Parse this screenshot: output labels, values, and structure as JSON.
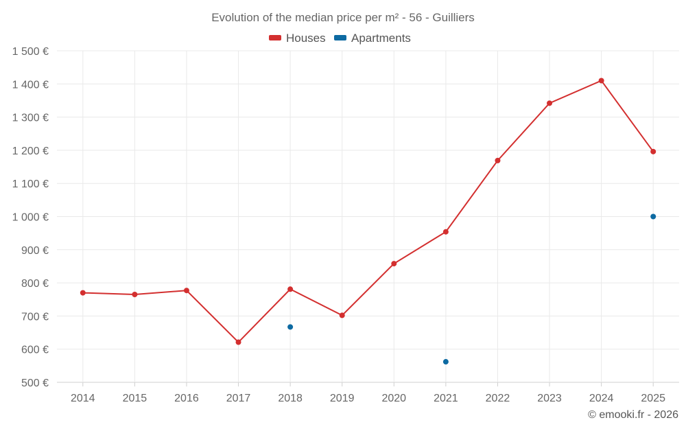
{
  "chart_data": {
    "type": "line",
    "title": "Evolution of the median price per m² - 56 - Guilliers",
    "categories": [
      "2014",
      "2015",
      "2016",
      "2017",
      "2018",
      "2019",
      "2020",
      "2021",
      "2022",
      "2023",
      "2024",
      "2025"
    ],
    "ylim": [
      500,
      1500
    ],
    "yticks": [
      500,
      600,
      700,
      800,
      900,
      1000,
      1100,
      1200,
      1300,
      1400,
      1500
    ],
    "ytick_labels": [
      "500 €",
      "600 €",
      "700 €",
      "800 €",
      "900 €",
      "1 000 €",
      "1 100 €",
      "1 200 €",
      "1 300 €",
      "1 400 €",
      "1 500 €"
    ],
    "legend_position": "top-center",
    "grid": true,
    "series": [
      {
        "name": "Houses",
        "color": "#d32f2f",
        "line": true,
        "values": [
          770,
          765,
          777,
          621,
          781,
          702,
          858,
          954,
          1169,
          1342,
          1410,
          1196
        ]
      },
      {
        "name": "Apartments",
        "color": "#0d6aa2",
        "line": false,
        "values": [
          null,
          null,
          null,
          null,
          667,
          null,
          null,
          562,
          null,
          null,
          null,
          1000
        ]
      }
    ]
  },
  "credit": "© emooki.fr - 2026"
}
